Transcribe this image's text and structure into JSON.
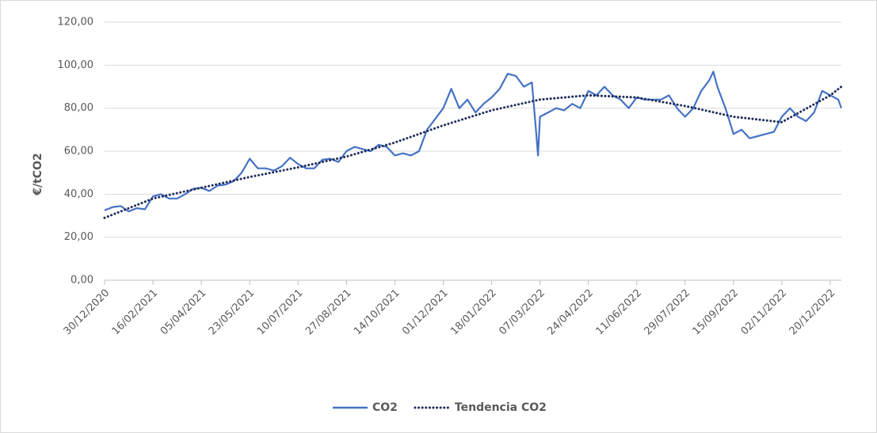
{
  "chart_data": {
    "type": "line",
    "y_label": "€/tCO2",
    "xlim": [
      "30/12/2020",
      "31/12/2022"
    ],
    "xticks": [
      "30/12/2020",
      "16/02/2021",
      "05/04/2021",
      "23/05/2021",
      "10/07/2021",
      "27/08/2021",
      "14/10/2021",
      "01/12/2021",
      "18/01/2022",
      "07/03/2022",
      "24/04/2022",
      "11/06/2022",
      "29/07/2022",
      "15/09/2022",
      "02/11/2022",
      "20/12/2022"
    ],
    "ylim": [
      0,
      120
    ],
    "yticks": [
      {
        "value": 0,
        "label": "0,00"
      },
      {
        "value": 20,
        "label": "20,00"
      },
      {
        "value": 40,
        "label": "40,00"
      },
      {
        "value": 60,
        "label": "60,00"
      },
      {
        "value": 80,
        "label": "80,00"
      },
      {
        "value": 100,
        "label": "100,00"
      },
      {
        "value": 120,
        "label": "120,00"
      }
    ],
    "grid": true,
    "legend": "bottom",
    "series": [
      {
        "name": "CO2",
        "color": "#4472c4",
        "style": "solid",
        "x": [
          "30/12/2020",
          "07/01/2021",
          "15/01/2021",
          "23/01/2021",
          "31/01/2021",
          "08/02/2021",
          "16/02/2021",
          "24/02/2021",
          "04/03/2021",
          "12/03/2021",
          "20/03/2021",
          "28/03/2021",
          "05/04/2021",
          "13/04/2021",
          "21/04/2021",
          "29/04/2021",
          "07/05/2021",
          "15/05/2021",
          "23/05/2021",
          "31/05/2021",
          "08/06/2021",
          "16/06/2021",
          "24/06/2021",
          "02/07/2021",
          "10/07/2021",
          "18/07/2021",
          "26/07/2021",
          "03/08/2021",
          "11/08/2021",
          "19/08/2021",
          "27/08/2021",
          "04/09/2021",
          "12/09/2021",
          "20/09/2021",
          "28/09/2021",
          "06/10/2021",
          "14/10/2021",
          "22/10/2021",
          "30/10/2021",
          "07/11/2021",
          "15/11/2021",
          "23/11/2021",
          "01/12/2021",
          "09/12/2021",
          "17/12/2021",
          "25/12/2021",
          "02/01/2022",
          "10/01/2022",
          "18/01/2022",
          "26/01/2022",
          "03/02/2022",
          "11/02/2022",
          "19/02/2022",
          "27/02/2022",
          "03/03/2022",
          "05/03/2022",
          "07/03/2022",
          "15/03/2022",
          "23/03/2022",
          "31/03/2022",
          "08/04/2022",
          "16/04/2022",
          "24/04/2022",
          "02/05/2022",
          "10/05/2022",
          "18/05/2022",
          "26/05/2022",
          "03/06/2022",
          "11/06/2022",
          "19/06/2022",
          "27/06/2022",
          "05/07/2022",
          "13/07/2022",
          "21/07/2022",
          "29/07/2022",
          "06/08/2022",
          "14/08/2022",
          "22/08/2022",
          "26/08/2022",
          "30/08/2022",
          "07/09/2022",
          "15/09/2022",
          "23/09/2022",
          "01/10/2022",
          "09/10/2022",
          "17/10/2022",
          "25/10/2022",
          "02/11/2022",
          "10/11/2022",
          "18/11/2022",
          "26/11/2022",
          "04/12/2022",
          "12/12/2022",
          "20/12/2022",
          "28/12/2022",
          "31/12/2022"
        ],
        "values": [
          32.5,
          34,
          34.5,
          32,
          33.5,
          33,
          39,
          40,
          38,
          38,
          40,
          42.5,
          43,
          41.5,
          44,
          44.5,
          46,
          50,
          56.5,
          52,
          52,
          51,
          53,
          57,
          54,
          52,
          52,
          56,
          56.5,
          55,
          60,
          62,
          61,
          60,
          63,
          62,
          58,
          59,
          58,
          60,
          70,
          75,
          80,
          89,
          80,
          84,
          78,
          82,
          85,
          89,
          96,
          95,
          90,
          92,
          70,
          58,
          76,
          78,
          80,
          79,
          82,
          80,
          88,
          86,
          90,
          86,
          84,
          80,
          85,
          84,
          84,
          84,
          86,
          80,
          76,
          80,
          88,
          93,
          97,
          90,
          80,
          68,
          70,
          66,
          67,
          68,
          69,
          76,
          80,
          76,
          74,
          78,
          88,
          86,
          84,
          80
        ]
      },
      {
        "name": "Tendencia CO2",
        "color": "#1f2d5a",
        "style": "dotted",
        "x": [
          "30/12/2020",
          "16/02/2021",
          "05/04/2021",
          "23/05/2021",
          "10/07/2021",
          "27/08/2021",
          "14/10/2021",
          "01/12/2021",
          "18/01/2022",
          "07/03/2022",
          "24/04/2022",
          "11/06/2022",
          "29/07/2022",
          "15/09/2022",
          "02/11/2022",
          "20/12/2022",
          "31/12/2022"
        ],
        "values": [
          29,
          38,
          43,
          48,
          52.5,
          57.5,
          64,
          72,
          79,
          84,
          86,
          85,
          81,
          76,
          73.5,
          86,
          90
        ]
      }
    ]
  }
}
